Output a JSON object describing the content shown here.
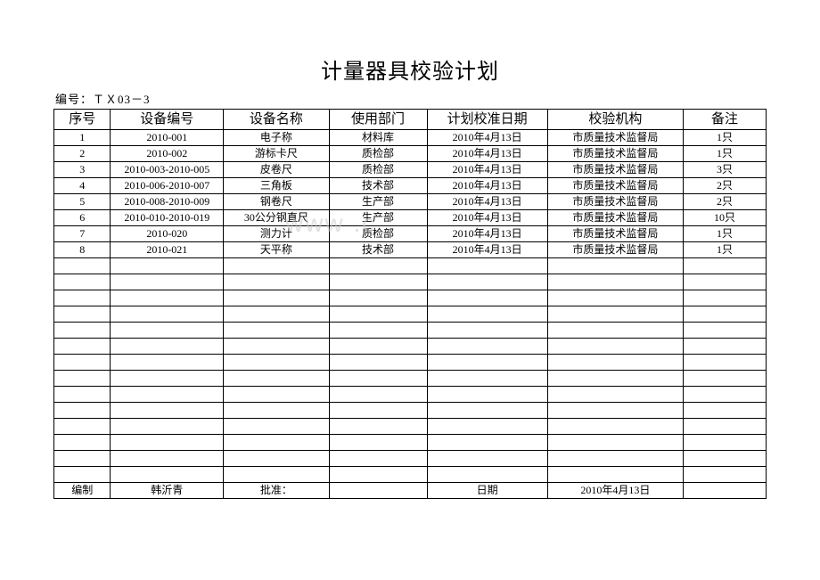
{
  "title": "计量器具校验计划",
  "subtitle": "编号：ＴＸ03－3",
  "watermark": "www         .c",
  "headers": [
    "序号",
    "设备编号",
    "设备名称",
    "使用部门",
    "计划校准日期",
    "校验机构",
    "备注"
  ],
  "rows": [
    {
      "seq": "1",
      "eqno": "2010-001",
      "name": "电子称",
      "dept": "材料库",
      "date": "2010年4月13日",
      "org": "市质量技术监督局",
      "remark": "1只"
    },
    {
      "seq": "2",
      "eqno": "2010-002",
      "name": "游标卡尺",
      "dept": "质检部",
      "date": "2010年4月13日",
      "org": "市质量技术监督局",
      "remark": "1只"
    },
    {
      "seq": "3",
      "eqno": "2010-003-2010-005",
      "name": "皮卷尺",
      "dept": "质检部",
      "date": "2010年4月13日",
      "org": "市质量技术监督局",
      "remark": "3只"
    },
    {
      "seq": "4",
      "eqno": "2010-006-2010-007",
      "name": "三角板",
      "dept": "技术部",
      "date": "2010年4月13日",
      "org": "市质量技术监督局",
      "remark": "2只"
    },
    {
      "seq": "5",
      "eqno": "2010-008-2010-009",
      "name": "钢卷尺",
      "dept": "生产部",
      "date": "2010年4月13日",
      "org": "市质量技术监督局",
      "remark": "2只"
    },
    {
      "seq": "6",
      "eqno": "2010-010-2010-019",
      "name": "30公分钢直尺",
      "dept": "生产部",
      "date": "2010年4月13日",
      "org": "市质量技术监督局",
      "remark": "10只"
    },
    {
      "seq": "7",
      "eqno": "2010-020",
      "name": "测力计",
      "dept": "质检部",
      "date": "2010年4月13日",
      "org": "市质量技术监督局",
      "remark": "1只"
    },
    {
      "seq": "8",
      "eqno": "2010-021",
      "name": "天平称",
      "dept": "技术部",
      "date": "2010年4月13日",
      "org": "市质量技术监督局",
      "remark": "1只"
    }
  ],
  "empty_rows": 14,
  "footer": {
    "compile_label": "编制",
    "compile_value": "韩沂青",
    "approve_label": "批准：",
    "date_label": "日期",
    "date_value": "2010年4月13日"
  }
}
